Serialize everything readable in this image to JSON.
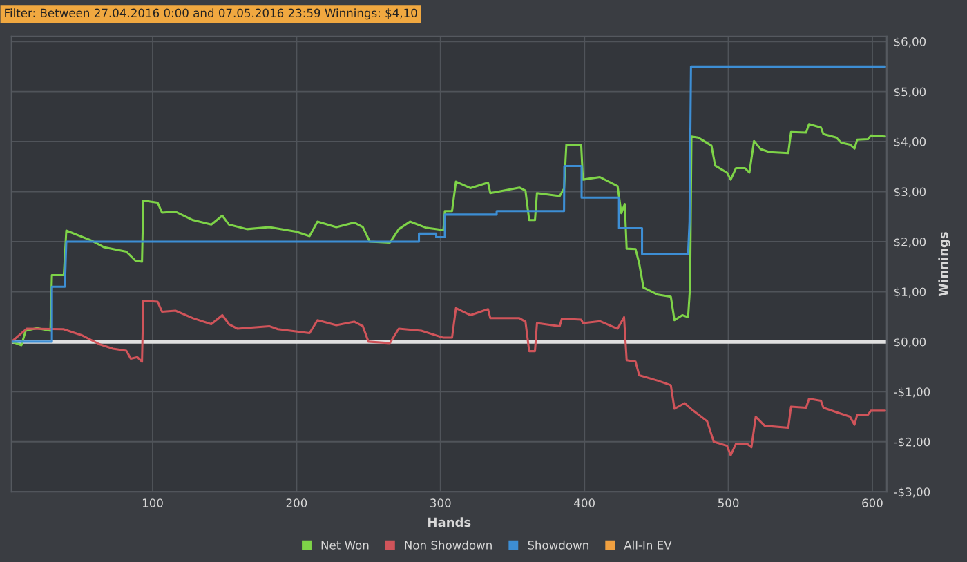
{
  "chart_data": {
    "type": "line",
    "xlabel": "Hands",
    "ylabel": "Winnings",
    "annotations": [
      "Filter: Between 27.04.2016 0:00 and 07.05.2016 23:59 Winnings: $4,10"
    ],
    "xlim": [
      2,
      610
    ],
    "ylim": [
      -3,
      6.1
    ],
    "xticks": [
      100,
      200,
      300,
      400,
      500,
      600
    ],
    "yticks": [
      {
        "value": 6,
        "label": "$6,00"
      },
      {
        "value": 5,
        "label": "$5,00"
      },
      {
        "value": 4,
        "label": "$4,00"
      },
      {
        "value": 3,
        "label": "$3,00"
      },
      {
        "value": 2,
        "label": "$2,00"
      },
      {
        "value": 1,
        "label": "$1,00"
      },
      {
        "value": 0,
        "label": "$0,00"
      },
      {
        "value": -1,
        "label": "-$1,00"
      },
      {
        "value": -2,
        "label": "-$2,00"
      },
      {
        "value": -3,
        "label": "-$3,00"
      }
    ],
    "grid": true,
    "legend": "bottom",
    "marker": "none",
    "line_style": "solid",
    "ref_lines": [
      {
        "axis": "y",
        "value": 0,
        "color": "#e0e0e0"
      }
    ],
    "series": [
      {
        "name": "Net Won",
        "color": "#7ed348",
        "x": [
          2,
          8.8,
          11.8,
          19.6,
          29,
          30,
          38.3,
          40,
          56.9,
          66,
          81.7,
          88,
          92.6,
          93.5,
          103.4,
          106.5,
          115.8,
          128,
          140.7,
          148.4,
          153,
          165.5,
          181,
          199.6,
          209,
          214.5,
          227.6,
          240,
          246,
          250.8,
          264.8,
          271,
          278.8,
          289.7,
          302,
          303,
          308,
          310.7,
          320.7,
          333,
          334.6,
          354.8,
          359,
          361.6,
          365.6,
          367,
          382.8,
          385.8,
          387.4,
          397.7,
          398.9,
          410.7,
          423,
          425.6,
          428,
          429.3,
          435.5,
          438,
          441,
          451,
          460,
          462.5,
          468,
          472,
          473.4,
          474.3,
          479,
          488.2,
          490.8,
          499,
          501.6,
          505.3,
          511.5,
          514.6,
          517.8,
          522.4,
          528.6,
          541.6,
          543.5,
          554,
          556,
          564.3,
          566,
          575,
          578.3,
          584.5,
          587.6,
          589.5,
          597,
          599,
          609
        ],
        "values": [
          0,
          -0.07,
          0.22,
          0.27,
          0.22,
          1.33,
          1.33,
          2.22,
          2.03,
          1.89,
          1.8,
          1.62,
          1.6,
          2.82,
          2.78,
          2.58,
          2.6,
          2.43,
          2.34,
          2.52,
          2.34,
          2.25,
          2.29,
          2.2,
          2.11,
          2.4,
          2.29,
          2.38,
          2.29,
          2.0,
          1.98,
          2.25,
          2.4,
          2.28,
          2.23,
          2.61,
          2.61,
          3.2,
          3.07,
          3.18,
          2.97,
          3.08,
          3.02,
          2.43,
          2.43,
          2.97,
          2.91,
          3.06,
          3.94,
          3.94,
          3.24,
          3.29,
          3.11,
          2.57,
          2.75,
          1.86,
          1.85,
          1.57,
          1.08,
          0.94,
          0.9,
          0.43,
          0.53,
          0.49,
          1.12,
          4.1,
          4.08,
          3.92,
          3.52,
          3.38,
          3.24,
          3.47,
          3.47,
          3.38,
          4.01,
          3.85,
          3.79,
          3.77,
          4.19,
          4.18,
          4.35,
          4.28,
          4.15,
          4.08,
          3.98,
          3.94,
          3.86,
          4.04,
          4.05,
          4.12,
          4.1
        ]
      },
      {
        "name": "Non Showdown",
        "color": "#d0545a",
        "x": [
          2,
          12.5,
          38,
          50.6,
          63,
          72.4,
          81.7,
          84.8,
          89.4,
          92.6,
          93.5,
          103.4,
          106.5,
          115.8,
          128,
          140.7,
          148.4,
          153,
          159,
          181,
          187,
          209,
          214.5,
          227.6,
          240,
          246,
          249.9,
          264.8,
          271,
          286.6,
          302,
          308,
          310.7,
          320.7,
          333,
          334.6,
          354.8,
          359,
          361.6,
          365.6,
          367,
          382.8,
          384.3,
          397.7,
          399,
          410.7,
          423,
          427.5,
          429.3,
          435.5,
          438,
          451,
          460,
          462.5,
          469.6,
          474.3,
          485.2,
          489.8,
          499,
          501.6,
          505.3,
          513,
          516,
          519,
          525.2,
          541.6,
          543.5,
          554,
          556,
          564.3,
          566,
          575,
          584.5,
          587.6,
          589.5,
          597,
          599,
          609
        ],
        "values": [
          0,
          0.26,
          0.25,
          0.13,
          -0.05,
          -0.14,
          -0.18,
          -0.34,
          -0.31,
          -0.4,
          0.82,
          0.8,
          0.6,
          0.62,
          0.47,
          0.35,
          0.53,
          0.35,
          0.26,
          0.31,
          0.25,
          0.17,
          0.43,
          0.33,
          0.4,
          0.31,
          0.0,
          -0.03,
          0.26,
          0.22,
          0.08,
          0.08,
          0.67,
          0.53,
          0.65,
          0.47,
          0.47,
          0.4,
          -0.19,
          -0.19,
          0.37,
          0.31,
          0.46,
          0.44,
          0.37,
          0.41,
          0.26,
          0.49,
          -0.37,
          -0.4,
          -0.67,
          -0.78,
          -0.87,
          -1.34,
          -1.23,
          -1.35,
          -1.59,
          -2.0,
          -2.08,
          -2.27,
          -2.04,
          -2.04,
          -2.11,
          -1.5,
          -1.68,
          -1.72,
          -1.3,
          -1.32,
          -1.14,
          -1.18,
          -1.32,
          -1.41,
          -1.5,
          -1.66,
          -1.46,
          -1.46,
          -1.38,
          -1.38
        ]
      },
      {
        "name": "Showdown",
        "color": "#3d8ed4",
        "x": [
          2,
          30,
          30,
          39,
          40,
          285,
          285,
          297,
          297,
          303,
          303,
          339,
          339,
          385.8,
          386,
          398,
          398,
          424,
          424,
          440,
          440,
          472,
          473,
          474,
          609
        ],
        "values": [
          0,
          0,
          1.1,
          1.1,
          2.0,
          2.0,
          2.16,
          2.16,
          2.09,
          2.09,
          2.54,
          2.54,
          2.61,
          2.61,
          3.51,
          3.51,
          2.88,
          2.88,
          2.27,
          2.27,
          1.75,
          1.75,
          2.4,
          5.5,
          5.5
        ]
      },
      {
        "name": "All-In EV",
        "color": "#f0a040"
      }
    ]
  }
}
